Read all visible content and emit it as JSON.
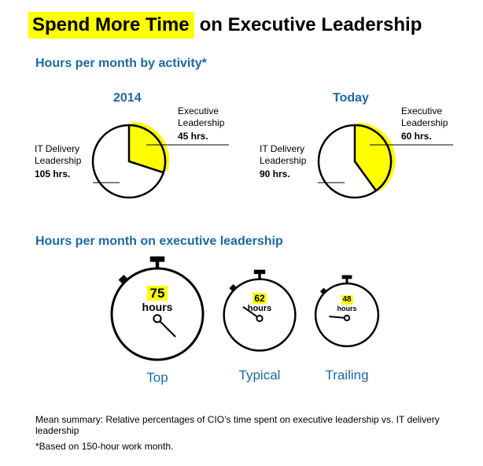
{
  "title": {
    "highlight": "Spend More Time",
    "rest": "on Executive Leadership"
  },
  "colors": {
    "accent_yellow": "#ffff00",
    "heading_blue": "#1a6aa0",
    "ink": "#000000"
  },
  "section1_heading": "Hours per month by activity*",
  "section2_heading": "Hours per month on executive leadership",
  "chart_data": [
    {
      "type": "pie",
      "title": "2014",
      "slices": [
        {
          "label_line1": "Executive",
          "label_line2": "Leadership",
          "value": 45,
          "value_label": "45 hrs.",
          "color": "#ffff00"
        },
        {
          "label_line1": "IT Delivery",
          "label_line2": "Leadership",
          "value": 105,
          "value_label": "105 hrs.",
          "color": "#ffffff"
        }
      ]
    },
    {
      "type": "pie",
      "title": "Today",
      "slices": [
        {
          "label_line1": "Executive",
          "label_line2": "Leadership",
          "value": 60,
          "value_label": "60 hrs.",
          "color": "#ffff00"
        },
        {
          "label_line1": "IT Delivery",
          "label_line2": "Leadership",
          "value": 90,
          "value_label": "90 hrs.",
          "color": "#ffffff"
        }
      ]
    },
    {
      "type": "bar",
      "title": "",
      "categories": [
        "Top",
        "Typical",
        "Trailing"
      ],
      "values": [
        75,
        62,
        48
      ],
      "value_labels": [
        "75",
        "62",
        "48"
      ],
      "unit_label": "hours"
    }
  ],
  "footnotes": {
    "summary": "Mean summary: Relative percentages of CIO’s time spent on executive leadership vs. IT delivery leadership",
    "basis": "*Based on 150-hour work month."
  }
}
